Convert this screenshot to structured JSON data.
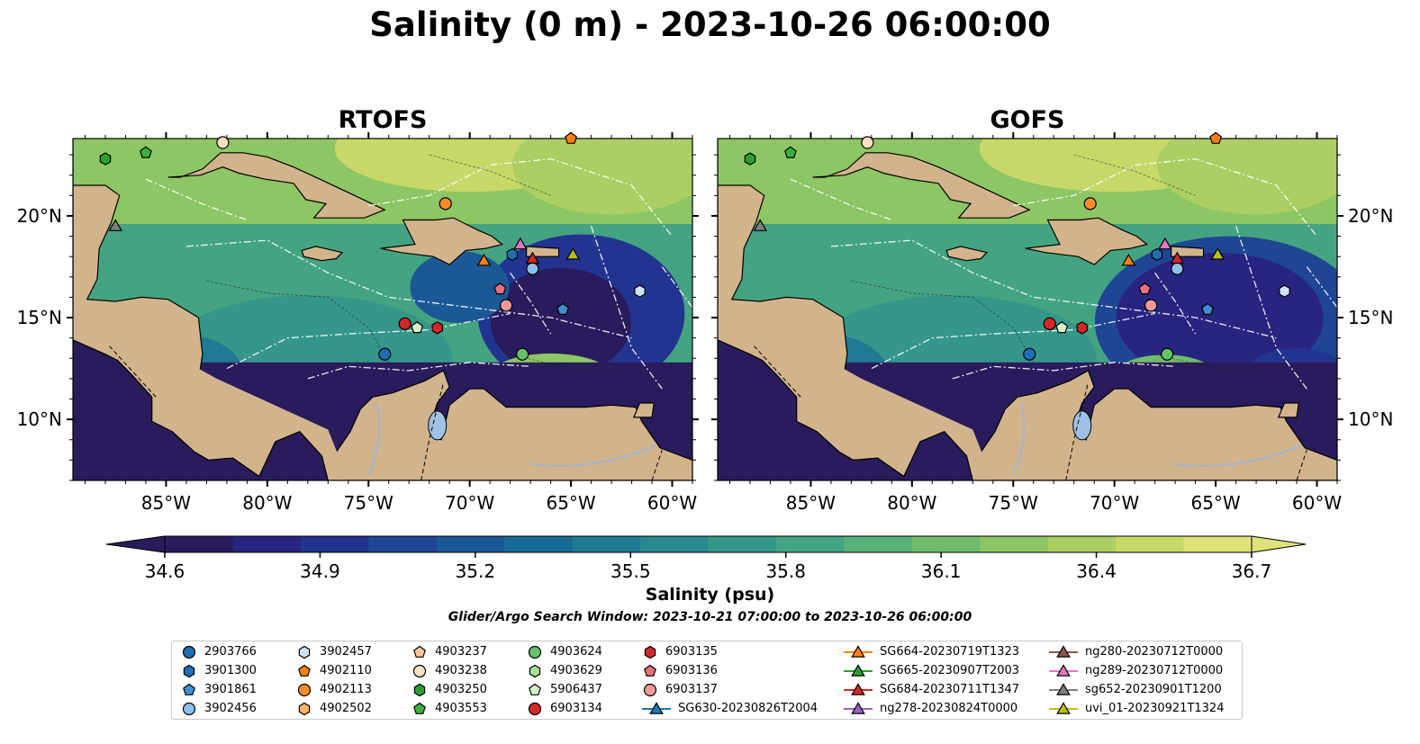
{
  "title": "Salinity (0 m) - 2023-10-26 06:00:00",
  "panels": [
    {
      "title": "RTOFS",
      "variant": "rtofs"
    },
    {
      "title": "GOFS",
      "variant": "gofs"
    }
  ],
  "lon_ticks": [
    {
      "value": -85,
      "label": "85°W"
    },
    {
      "value": -80,
      "label": "80°W"
    },
    {
      "value": -75,
      "label": "75°W"
    },
    {
      "value": -70,
      "label": "70°W"
    },
    {
      "value": -65,
      "label": "65°W"
    },
    {
      "value": -60,
      "label": "60°W"
    }
  ],
  "lat_ticks": [
    {
      "value": 10,
      "label": "10°N"
    },
    {
      "value": 15,
      "label": "15°N"
    },
    {
      "value": 20,
      "label": "20°N"
    }
  ],
  "extent": {
    "lon": [
      -89.6,
      -59.0
    ],
    "lat": [
      7.0,
      23.8
    ]
  },
  "colorbar": {
    "label": "Salinity (psu)",
    "min": 34.6,
    "max": 36.7,
    "ticks": [
      "34.6",
      "34.9",
      "35.2",
      "35.5",
      "35.8",
      "36.1",
      "36.4",
      "36.7"
    ],
    "colors": [
      "#2a1b5c",
      "#272580",
      "#233490",
      "#1f4595",
      "#1b5896",
      "#176a95",
      "#1e7b93",
      "#28898f",
      "#349789",
      "#44a481",
      "#58b177",
      "#70bc6c",
      "#8dc664",
      "#abcf63",
      "#c7d869",
      "#dfe17a"
    ],
    "extend": "both"
  },
  "search_window": "Glider/Argo Search Window: 2023-10-21 07:00:00 to 2023-10-26 06:00:00",
  "legend": {
    "columns": [
      [
        {
          "label": "2903766",
          "marker": "circle",
          "color": "#1f6fb4"
        },
        {
          "label": "3901300",
          "marker": "hexagon",
          "color": "#1f6fb4"
        },
        {
          "label": "3901861",
          "marker": "pentagon",
          "color": "#3d8fd1"
        },
        {
          "label": "3902456",
          "marker": "circle",
          "color": "#8ec1ea"
        }
      ],
      [
        {
          "label": "3902457",
          "marker": "hexagon",
          "color": "#cfe2f7"
        },
        {
          "label": "4902110",
          "marker": "pentagon",
          "color": "#ff7f0e"
        },
        {
          "label": "4902113",
          "marker": "circle",
          "color": "#ff8c2a"
        },
        {
          "label": "4902502",
          "marker": "hexagon",
          "color": "#ffb36b"
        }
      ],
      [
        {
          "label": "4903237",
          "marker": "pentagon",
          "color": "#ffc896"
        },
        {
          "label": "4903238",
          "marker": "circle",
          "color": "#ffe0c2"
        },
        {
          "label": "4903250",
          "marker": "hexagon",
          "color": "#2ca02c"
        },
        {
          "label": "4903553",
          "marker": "pentagon",
          "color": "#3cb03c"
        }
      ],
      [
        {
          "label": "4903624",
          "marker": "circle",
          "color": "#66c266"
        },
        {
          "label": "4903629",
          "marker": "hexagon",
          "color": "#a7e09a"
        },
        {
          "label": "5906437",
          "marker": "pentagon",
          "color": "#d4f4c8"
        },
        {
          "label": "6903134",
          "marker": "circle",
          "color": "#d62728"
        }
      ],
      [
        {
          "label": "6903135",
          "marker": "hexagon",
          "color": "#d62728"
        },
        {
          "label": "6903136",
          "marker": "pentagon",
          "color": "#e8707a"
        },
        {
          "label": "6903137",
          "marker": "circle",
          "color": "#f49a9a"
        },
        {
          "label": "SG630-20230826T2004",
          "marker": "triangle",
          "color": "#1f77b4"
        }
      ],
      [
        {
          "label": "SG664-20230719T1323",
          "marker": "triangle",
          "color": "#ff7f0e"
        },
        {
          "label": "SG665-20230907T2003",
          "marker": "triangle",
          "color": "#2ca02c"
        },
        {
          "label": "SG684-20230711T1347",
          "marker": "triangle",
          "color": "#d62728"
        },
        {
          "label": "ng278-20230824T0000",
          "marker": "triangle",
          "color": "#9467bd"
        }
      ],
      [
        {
          "label": "ng280-20230712T0000",
          "marker": "triangle",
          "color": "#8c564b"
        },
        {
          "label": "ng289-20230712T0000",
          "marker": "triangle",
          "color": "#e377c2"
        },
        {
          "label": "sg652-20230901T1200",
          "marker": "triangle",
          "color": "#7f7f7f"
        },
        {
          "label": "uvi_01-20230921T1324",
          "marker": "triangle",
          "color": "#bcbd22"
        }
      ]
    ]
  },
  "chart_data": {
    "type": "heatmap",
    "title": "Salinity (0 m) - 2023-10-26 06:00:00",
    "subplots": [
      "RTOFS",
      "GOFS"
    ],
    "x_axis": {
      "range": [
        -89.6,
        -59.0
      ],
      "ticks": [
        "85°W",
        "80°W",
        "75°W",
        "70°W",
        "65°W",
        "60°W"
      ]
    },
    "y_axis": {
      "range": [
        7.0,
        23.8
      ],
      "ticks": [
        "10°N",
        "15°N",
        "20°N"
      ]
    },
    "colorbar_label": "Salinity (psu)",
    "colorbar_range": [
      34.6,
      36.7
    ],
    "observations": [
      {
        "id": "2903766",
        "lon": -74.2,
        "lat": 13.2
      },
      {
        "id": "3901300",
        "lon": -67.9,
        "lat": 18.1
      },
      {
        "id": "3901861",
        "lon": -65.4,
        "lat": 15.4
      },
      {
        "id": "3902456",
        "lon": -66.9,
        "lat": 17.4
      },
      {
        "id": "3902457",
        "lon": -61.6,
        "lat": 16.3
      },
      {
        "id": "4902110",
        "lon": -65.0,
        "lat": 23.8
      },
      {
        "id": "4902113",
        "lon": -71.2,
        "lat": 20.6
      },
      {
        "id": "4903238",
        "lon": -82.2,
        "lat": 23.6
      },
      {
        "id": "4903250",
        "lon": -88.0,
        "lat": 22.8
      },
      {
        "id": "4903553",
        "lon": -86.0,
        "lat": 23.1
      },
      {
        "id": "4903624",
        "lon": -67.4,
        "lat": 13.2
      },
      {
        "id": "5906437",
        "lon": -72.6,
        "lat": 14.5
      },
      {
        "id": "6903134",
        "lon": -73.2,
        "lat": 14.7
      },
      {
        "id": "6903135",
        "lon": -71.6,
        "lat": 14.5
      },
      {
        "id": "6903136",
        "lon": -68.5,
        "lat": 16.4
      },
      {
        "id": "6903137",
        "lon": -68.2,
        "lat": 15.6
      },
      {
        "id": "SG664-20230719T1323",
        "lon": -69.3,
        "lat": 17.8
      },
      {
        "id": "SG684-20230711T1347",
        "lon": -66.9,
        "lat": 17.9
      },
      {
        "id": "ng289-20230712T0000",
        "lon": -67.5,
        "lat": 18.6
      },
      {
        "id": "sg652-20230901T1200",
        "lon": -87.5,
        "lat": 19.5
      },
      {
        "id": "uvi_01-20230921T1324",
        "lon": -64.9,
        "lat": 18.1
      }
    ]
  }
}
